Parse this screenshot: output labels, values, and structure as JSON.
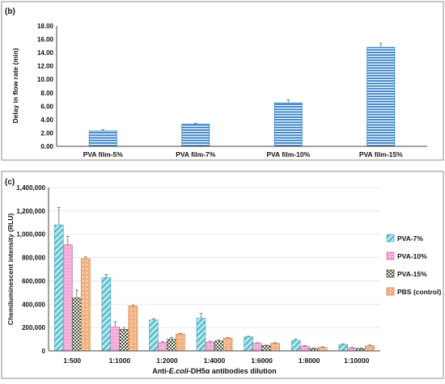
{
  "chart_data": [
    {
      "panel_label": "(b)",
      "type": "bar",
      "categories": [
        "PVA film-5%",
        "PVA film-7%",
        "PVA film-10%",
        "PVA film-15%"
      ],
      "values": [
        2.3,
        3.3,
        6.5,
        14.8
      ],
      "errors": [
        0.2,
        0.15,
        0.45,
        0.55
      ],
      "ylabel": "Delay in flow rate (min)",
      "xlabel": "",
      "ylim": [
        0,
        18
      ],
      "yticks": [
        "0.00",
        "2.00",
        "4.00",
        "6.00",
        "8.00",
        "10.00",
        "12.00",
        "14.00",
        "16.00",
        "18.00"
      ],
      "bar_color": "#2e7dc4",
      "grid": false
    },
    {
      "panel_label": "(c)",
      "type": "bar",
      "categories": [
        "1:500",
        "1:1000",
        "1:2000",
        "1:4000",
        "1:6000",
        "1:8000",
        "1:10000"
      ],
      "xlabel_parts": [
        "Anti-",
        "E.coli",
        "-DH5α antibodies dilution"
      ],
      "ylabel": "Chemiluminescent intensity (RLU)",
      "ylim": [
        0,
        1400000
      ],
      "yticks": [
        "0",
        "200,000",
        "400,000",
        "600,000",
        "800,000",
        "1,000,000",
        "1,200,000",
        "1,400,000"
      ],
      "grid": true,
      "legend_position": "right",
      "series": [
        {
          "name": "PVA-7%",
          "color": "#aee8ee",
          "pattern": "diagonal-stripes",
          "values": [
            1080000,
            630000,
            265000,
            280000,
            120000,
            90000,
            55000
          ],
          "errors": [
            150000,
            25000,
            10000,
            40000,
            5000,
            12000,
            5000
          ]
        },
        {
          "name": "PVA-10%",
          "color": "#f3a6d6",
          "pattern": "dots",
          "values": [
            910000,
            205000,
            70000,
            75000,
            65000,
            40000,
            25000
          ],
          "errors": [
            70000,
            45000,
            8000,
            8000,
            5000,
            5000,
            5000
          ]
        },
        {
          "name": "PVA-15%",
          "color": "#cfd6b0",
          "pattern": "checker",
          "values": [
            455000,
            185000,
            100000,
            85000,
            45000,
            20000,
            20000
          ],
          "errors": [
            65000,
            15000,
            15000,
            10000,
            5000,
            5000,
            5000
          ]
        },
        {
          "name": "PBS (control)",
          "color": "#f4b283",
          "pattern": "dots",
          "values": [
            790000,
            385000,
            145000,
            110000,
            65000,
            30000,
            45000
          ],
          "errors": [
            15000,
            5000,
            5000,
            5000,
            5000,
            5000,
            5000
          ]
        }
      ]
    }
  ]
}
